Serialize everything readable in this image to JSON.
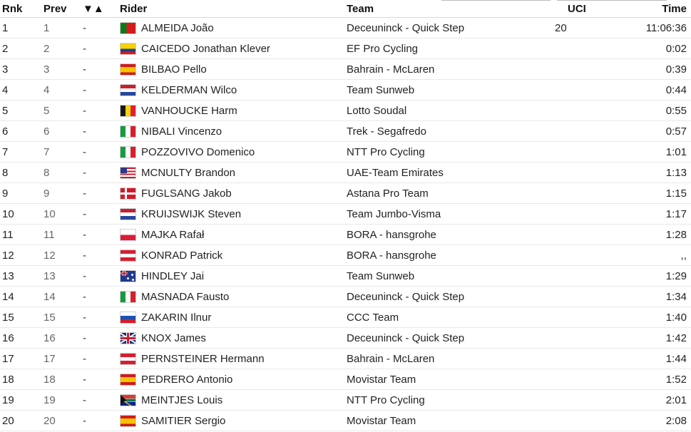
{
  "headers": {
    "rank": "Rnk",
    "prev": "Prev",
    "change": "▼▲",
    "rider": "Rider",
    "team": "Team",
    "uci": "UCI",
    "time": "Time"
  },
  "rows": [
    {
      "rank": "1",
      "prev": "1",
      "change": "-",
      "flag": "pt",
      "rider": "ALMEIDA João",
      "team": "Deceuninck - Quick Step",
      "uci": "20",
      "time": "11:06:36"
    },
    {
      "rank": "2",
      "prev": "2",
      "change": "-",
      "flag": "ec",
      "rider": "CAICEDO Jonathan Klever",
      "team": "EF Pro Cycling",
      "uci": "",
      "time": "0:02"
    },
    {
      "rank": "3",
      "prev": "3",
      "change": "-",
      "flag": "es",
      "rider": "BILBAO Pello",
      "team": "Bahrain - McLaren",
      "uci": "",
      "time": "0:39"
    },
    {
      "rank": "4",
      "prev": "4",
      "change": "-",
      "flag": "nl",
      "rider": "KELDERMAN Wilco",
      "team": "Team Sunweb",
      "uci": "",
      "time": "0:44"
    },
    {
      "rank": "5",
      "prev": "5",
      "change": "-",
      "flag": "be",
      "rider": "VANHOUCKE Harm",
      "team": "Lotto Soudal",
      "uci": "",
      "time": "0:55"
    },
    {
      "rank": "6",
      "prev": "6",
      "change": "-",
      "flag": "it",
      "rider": "NIBALI Vincenzo",
      "team": "Trek - Segafredo",
      "uci": "",
      "time": "0:57"
    },
    {
      "rank": "7",
      "prev": "7",
      "change": "-",
      "flag": "it",
      "rider": "POZZOVIVO Domenico",
      "team": "NTT Pro Cycling",
      "uci": "",
      "time": "1:01"
    },
    {
      "rank": "8",
      "prev": "8",
      "change": "-",
      "flag": "us",
      "rider": "MCNULTY Brandon",
      "team": "UAE-Team Emirates",
      "uci": "",
      "time": "1:13"
    },
    {
      "rank": "9",
      "prev": "9",
      "change": "-",
      "flag": "dk",
      "rider": "FUGLSANG Jakob",
      "team": "Astana Pro Team",
      "uci": "",
      "time": "1:15"
    },
    {
      "rank": "10",
      "prev": "10",
      "change": "-",
      "flag": "nl",
      "rider": "KRUIJSWIJK Steven",
      "team": "Team Jumbo-Visma",
      "uci": "",
      "time": "1:17"
    },
    {
      "rank": "11",
      "prev": "11",
      "change": "-",
      "flag": "pl",
      "rider": "MAJKA Rafał",
      "team": "BORA - hansgrohe",
      "uci": "",
      "time": "1:28"
    },
    {
      "rank": "12",
      "prev": "12",
      "change": "-",
      "flag": "at",
      "rider": "KONRAD Patrick",
      "team": "BORA - hansgrohe",
      "uci": "",
      "time": ",,"
    },
    {
      "rank": "13",
      "prev": "13",
      "change": "-",
      "flag": "au",
      "rider": "HINDLEY Jai",
      "team": "Team Sunweb",
      "uci": "",
      "time": "1:29"
    },
    {
      "rank": "14",
      "prev": "14",
      "change": "-",
      "flag": "it",
      "rider": "MASNADA Fausto",
      "team": "Deceuninck - Quick Step",
      "uci": "",
      "time": "1:34"
    },
    {
      "rank": "15",
      "prev": "15",
      "change": "-",
      "flag": "ru",
      "rider": "ZAKARIN Ilnur",
      "team": "CCC Team",
      "uci": "",
      "time": "1:40"
    },
    {
      "rank": "16",
      "prev": "16",
      "change": "-",
      "flag": "gb",
      "rider": "KNOX James",
      "team": "Deceuninck - Quick Step",
      "uci": "",
      "time": "1:42"
    },
    {
      "rank": "17",
      "prev": "17",
      "change": "-",
      "flag": "at",
      "rider": "PERNSTEINER Hermann",
      "team": "Bahrain - McLaren",
      "uci": "",
      "time": "1:44"
    },
    {
      "rank": "18",
      "prev": "18",
      "change": "-",
      "flag": "es",
      "rider": "PEDRERO Antonio",
      "team": "Movistar Team",
      "uci": "",
      "time": "1:52"
    },
    {
      "rank": "19",
      "prev": "19",
      "change": "-",
      "flag": "za",
      "rider": "MEINTJES Louis",
      "team": "NTT Pro Cycling",
      "uci": "",
      "time": "2:01"
    },
    {
      "rank": "20",
      "prev": "20",
      "change": "-",
      "flag": "es",
      "rider": "SAMITIER Sergio",
      "team": "Movistar Team",
      "uci": "",
      "time": "2:08"
    }
  ]
}
